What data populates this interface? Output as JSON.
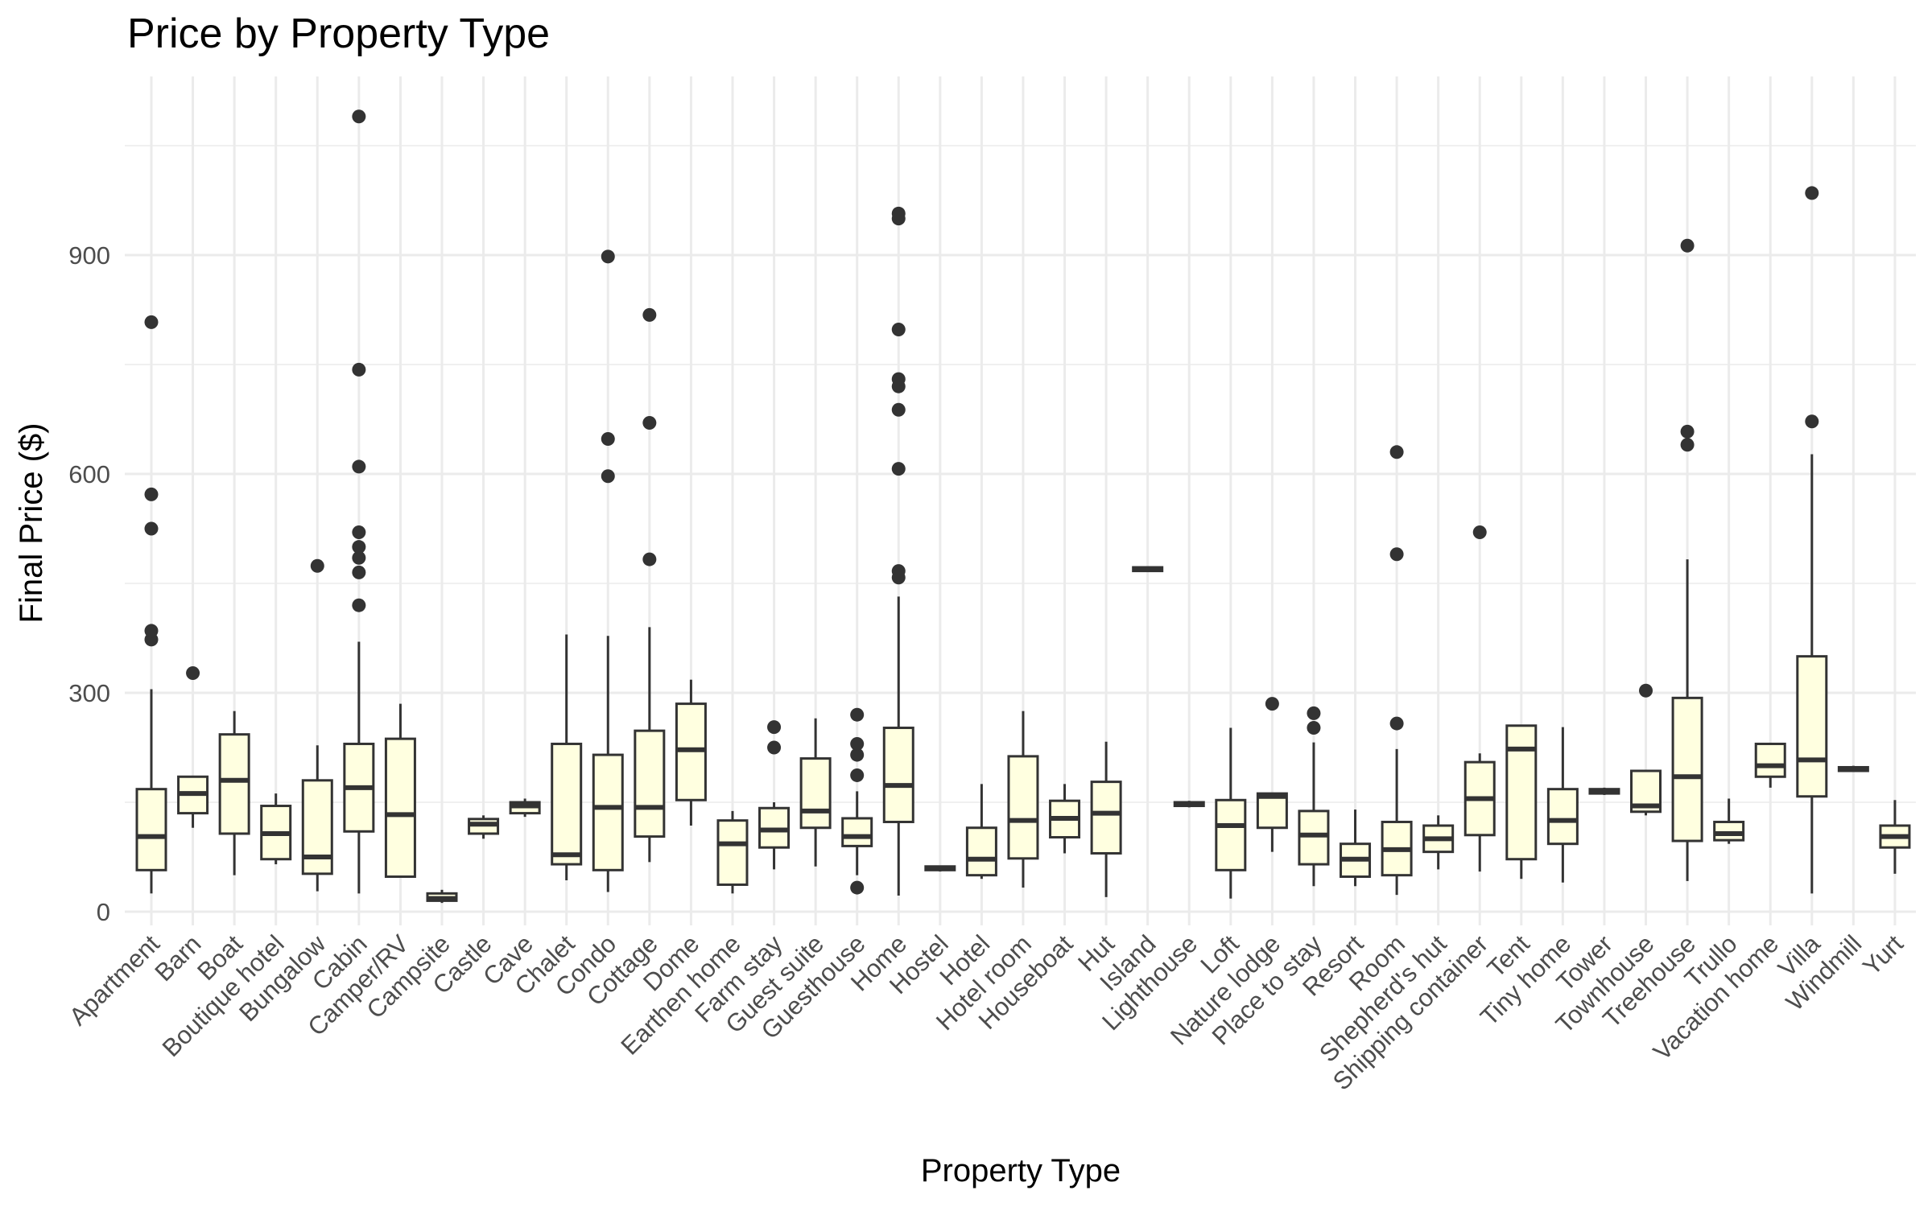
{
  "chart_data": {
    "type": "box",
    "title": "Price by Property Type",
    "xlabel": "Property Type",
    "ylabel": "Final Price ($)",
    "ylim": [
      -20,
      1100
    ],
    "yticks": [
      0,
      300,
      600,
      900
    ],
    "grid": true,
    "colors": {
      "box_fill": "#FFFFE0",
      "box_stroke": "#333333",
      "grid": "#EBEBEB",
      "tick_text": "#4D4D4D"
    },
    "categories": [
      "Apartment",
      "Barn",
      "Boat",
      "Boutique hotel",
      "Bungalow",
      "Cabin",
      "Camper/RV",
      "Campsite",
      "Castle",
      "Cave",
      "Chalet",
      "Condo",
      "Cottage",
      "Dome",
      "Earthen home",
      "Farm stay",
      "Guest suite",
      "Guesthouse",
      "Home",
      "Hostel",
      "Hotel",
      "Hotel room",
      "Houseboat",
      "Hut",
      "Island",
      "Lighthouse",
      "Loft",
      "Nature lodge",
      "Place to stay",
      "Resort",
      "Room",
      "Shepherd's hut",
      "Shipping container",
      "Tent",
      "Tiny home",
      "Tower",
      "Townhouse",
      "Treehouse",
      "Trullo",
      "Vacation home",
      "Villa",
      "Windmill",
      "Yurt"
    ],
    "boxes": [
      {
        "min": 25,
        "q1": 57,
        "median": 103,
        "q3": 168,
        "max": 305,
        "outliers": [
          373,
          385,
          525,
          572,
          808
        ]
      },
      {
        "min": 115,
        "q1": 135,
        "median": 162,
        "q3": 185,
        "max": 185,
        "outliers": [
          327
        ]
      },
      {
        "min": 50,
        "q1": 107,
        "median": 180,
        "q3": 243,
        "max": 275,
        "outliers": []
      },
      {
        "min": 65,
        "q1": 72,
        "median": 107,
        "q3": 145,
        "max": 162,
        "outliers": []
      },
      {
        "min": 28,
        "q1": 52,
        "median": 75,
        "q3": 180,
        "max": 228,
        "outliers": [
          474
        ]
      },
      {
        "min": 25,
        "q1": 110,
        "median": 170,
        "q3": 230,
        "max": 370,
        "outliers": [
          420,
          465,
          485,
          500,
          520,
          610,
          743,
          1090
        ]
      },
      {
        "min": 48,
        "q1": 48,
        "median": 133,
        "q3": 237,
        "max": 285,
        "outliers": []
      },
      {
        "min": 12,
        "q1": 15,
        "median": 18,
        "q3": 25,
        "max": 30,
        "outliers": []
      },
      {
        "min": 100,
        "q1": 107,
        "median": 120,
        "q3": 127,
        "max": 132,
        "outliers": []
      },
      {
        "min": 130,
        "q1": 135,
        "median": 145,
        "q3": 150,
        "max": 155,
        "outliers": []
      },
      {
        "min": 43,
        "q1": 65,
        "median": 78,
        "q3": 230,
        "max": 380,
        "outliers": []
      },
      {
        "min": 27,
        "q1": 57,
        "median": 143,
        "q3": 215,
        "max": 378,
        "outliers": [
          597,
          648,
          898
        ]
      },
      {
        "min": 68,
        "q1": 103,
        "median": 143,
        "q3": 248,
        "max": 390,
        "outliers": [
          483,
          670,
          818
        ]
      },
      {
        "min": 118,
        "q1": 153,
        "median": 222,
        "q3": 285,
        "max": 318,
        "outliers": []
      },
      {
        "min": 25,
        "q1": 37,
        "median": 93,
        "q3": 125,
        "max": 138,
        "outliers": []
      },
      {
        "min": 58,
        "q1": 88,
        "median": 112,
        "q3": 142,
        "max": 150,
        "outliers": [
          225,
          253
        ]
      },
      {
        "min": 62,
        "q1": 115,
        "median": 138,
        "q3": 210,
        "max": 265,
        "outliers": []
      },
      {
        "min": 50,
        "q1": 90,
        "median": 103,
        "q3": 128,
        "max": 165,
        "outliers": [
          33,
          187,
          215,
          230,
          270
        ]
      },
      {
        "min": 22,
        "q1": 123,
        "median": 173,
        "q3": 252,
        "max": 432,
        "outliers": [
          458,
          467,
          607,
          688,
          720,
          730,
          798,
          950,
          957
        ]
      },
      {
        "min": 55,
        "q1": 57,
        "median": 60,
        "q3": 62,
        "max": 63,
        "outliers": []
      },
      {
        "min": 45,
        "q1": 50,
        "median": 72,
        "q3": 115,
        "max": 175,
        "outliers": []
      },
      {
        "min": 33,
        "q1": 73,
        "median": 125,
        "q3": 213,
        "max": 275,
        "outliers": []
      },
      {
        "min": 80,
        "q1": 102,
        "median": 128,
        "q3": 152,
        "max": 175,
        "outliers": []
      },
      {
        "min": 20,
        "q1": 80,
        "median": 135,
        "q3": 178,
        "max": 233,
        "outliers": []
      },
      {
        "min": 466,
        "q1": 467,
        "median": 470,
        "q3": 472,
        "max": 473,
        "outliers": []
      },
      {
        "min": 143,
        "q1": 145,
        "median": 147,
        "q3": 150,
        "max": 152,
        "outliers": []
      },
      {
        "min": 18,
        "q1": 57,
        "median": 118,
        "q3": 153,
        "max": 252,
        "outliers": []
      },
      {
        "min": 82,
        "q1": 115,
        "median": 158,
        "q3": 162,
        "max": 162,
        "outliers": [
          285
        ]
      },
      {
        "min": 35,
        "q1": 65,
        "median": 105,
        "q3": 138,
        "max": 232,
        "outliers": [
          252,
          272
        ]
      },
      {
        "min": 35,
        "q1": 48,
        "median": 72,
        "q3": 93,
        "max": 140,
        "outliers": []
      },
      {
        "min": 23,
        "q1": 50,
        "median": 85,
        "q3": 123,
        "max": 223,
        "outliers": [
          258,
          490,
          630
        ]
      },
      {
        "min": 58,
        "q1": 82,
        "median": 100,
        "q3": 118,
        "max": 132,
        "outliers": []
      },
      {
        "min": 55,
        "q1": 105,
        "median": 155,
        "q3": 205,
        "max": 217,
        "outliers": [
          520
        ]
      },
      {
        "min": 45,
        "q1": 72,
        "median": 223,
        "q3": 255,
        "max": 255,
        "outliers": []
      },
      {
        "min": 40,
        "q1": 93,
        "median": 125,
        "q3": 168,
        "max": 253,
        "outliers": []
      },
      {
        "min": 160,
        "q1": 162,
        "median": 165,
        "q3": 168,
        "max": 170,
        "outliers": []
      },
      {
        "min": 132,
        "q1": 137,
        "median": 145,
        "q3": 193,
        "max": 193,
        "outliers": [
          303
        ]
      },
      {
        "min": 42,
        "q1": 97,
        "median": 185,
        "q3": 293,
        "max": 483,
        "outliers": [
          640,
          658,
          913
        ]
      },
      {
        "min": 93,
        "q1": 98,
        "median": 107,
        "q3": 123,
        "max": 155,
        "outliers": []
      },
      {
        "min": 170,
        "q1": 185,
        "median": 200,
        "q3": 230,
        "max": 230,
        "outliers": []
      },
      {
        "min": 25,
        "q1": 158,
        "median": 208,
        "q3": 350,
        "max": 627,
        "outliers": [
          672,
          985
        ]
      },
      {
        "min": 192,
        "q1": 193,
        "median": 195,
        "q3": 198,
        "max": 200,
        "outliers": []
      },
      {
        "min": 52,
        "q1": 88,
        "median": 103,
        "q3": 118,
        "max": 153,
        "outliers": []
      }
    ]
  }
}
